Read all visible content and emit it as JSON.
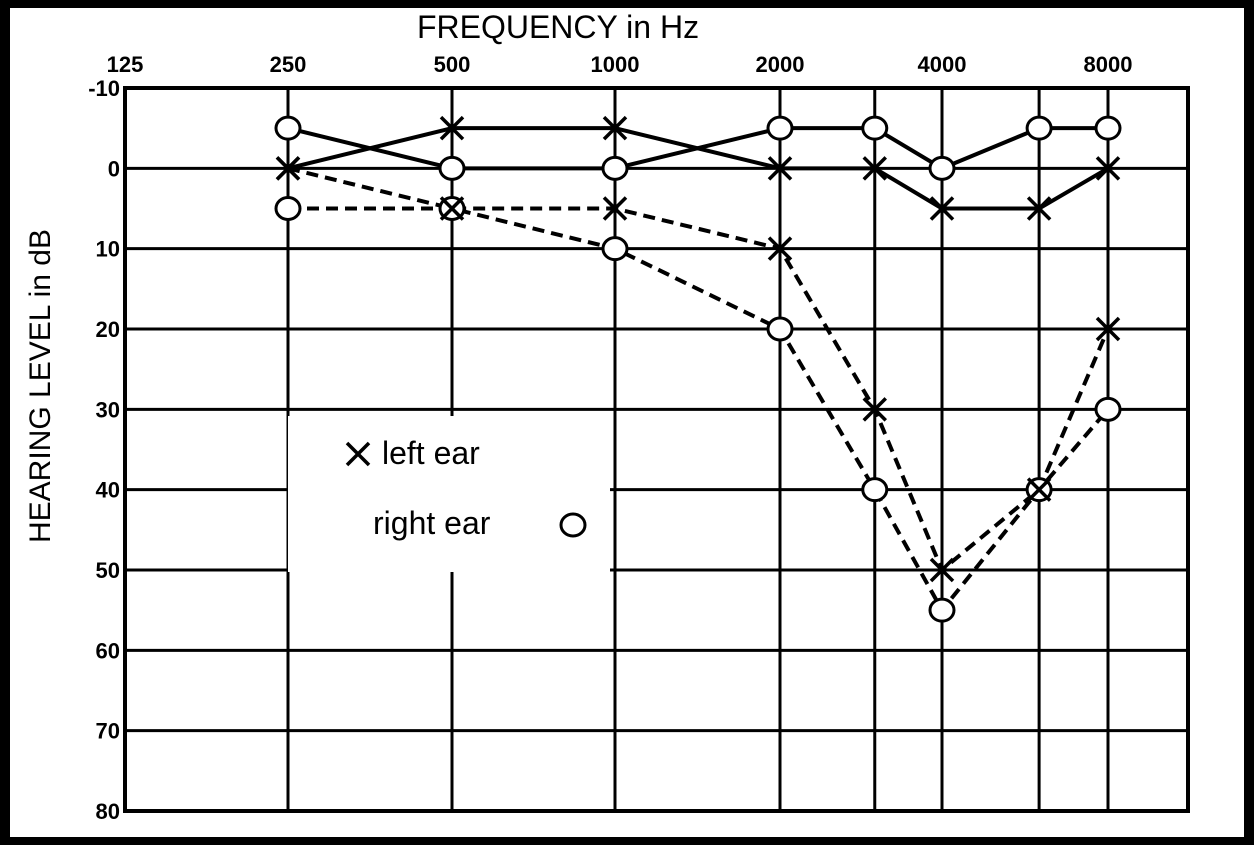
{
  "chart_data": {
    "type": "line",
    "title": "FREQUENCY in Hz",
    "xlabel": "FREQUENCY in Hz",
    "ylabel": "HEARING LEVEL in dB",
    "x_ticks": [
      "125",
      "250",
      "500",
      "1000",
      "2000",
      "4000",
      "8000"
    ],
    "x": [
      250,
      500,
      1000,
      2000,
      3000,
      4000,
      6000,
      8000
    ],
    "y_ticks": [
      "-10",
      "0",
      "10",
      "20",
      "30",
      "40",
      "50",
      "60",
      "70",
      "80"
    ],
    "ylim": [
      -10,
      80
    ],
    "y_inverted": true,
    "grid": true,
    "legend": {
      "position": "center-left",
      "left_label": "left ear",
      "right_label": "right ear"
    },
    "series": [
      {
        "name": "left ear",
        "marker": "x",
        "line": "solid",
        "values": [
          0,
          -5,
          -5,
          0,
          0,
          5,
          5,
          0
        ]
      },
      {
        "name": "right ear",
        "marker": "o",
        "line": "solid",
        "values": [
          -5,
          0,
          0,
          -5,
          -5,
          0,
          -5,
          -5
        ]
      },
      {
        "name": "left ear",
        "marker": "x",
        "line": "dashed",
        "values": [
          0,
          5,
          5,
          10,
          30,
          50,
          40,
          20
        ]
      },
      {
        "name": "right ear",
        "marker": "o",
        "line": "dashed",
        "values": [
          5,
          5,
          10,
          20,
          40,
          55,
          40,
          30
        ]
      }
    ]
  }
}
